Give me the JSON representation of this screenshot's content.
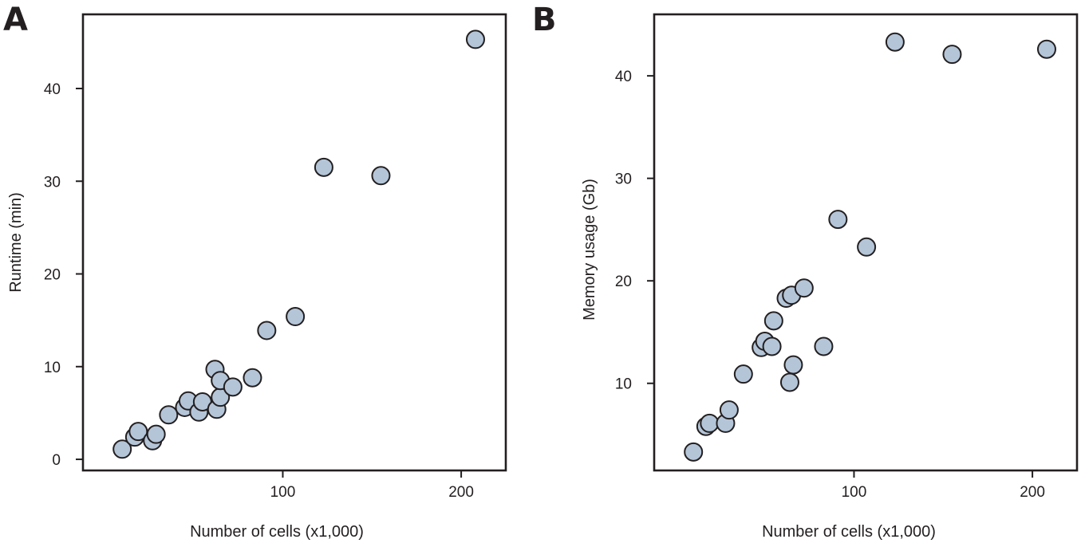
{
  "chart_data": [
    {
      "panel": "A",
      "type": "scatter",
      "title": "",
      "xlabel": "Number of cells (x1,000)",
      "ylabel": "Runtime (min)",
      "xlim": [
        -12,
        225
      ],
      "ylim": [
        -1.2,
        48
      ],
      "xticks": [
        100,
        200
      ],
      "yticks": [
        0,
        10,
        20,
        30,
        40
      ],
      "grid": false,
      "legend": "none",
      "marker_color": "#b4c5d8",
      "edge_color": "#231f20",
      "points": [
        {
          "x": 10,
          "y": 1.1
        },
        {
          "x": 17,
          "y": 2.4
        },
        {
          "x": 19,
          "y": 3.0
        },
        {
          "x": 27,
          "y": 2.0
        },
        {
          "x": 29,
          "y": 2.7
        },
        {
          "x": 36,
          "y": 4.8
        },
        {
          "x": 45,
          "y": 5.6
        },
        {
          "x": 47,
          "y": 6.3
        },
        {
          "x": 53,
          "y": 5.1
        },
        {
          "x": 55,
          "y": 6.2
        },
        {
          "x": 62,
          "y": 9.7
        },
        {
          "x": 63,
          "y": 5.4
        },
        {
          "x": 65,
          "y": 6.7
        },
        {
          "x": 65,
          "y": 8.5
        },
        {
          "x": 72,
          "y": 7.8
        },
        {
          "x": 83,
          "y": 8.8
        },
        {
          "x": 91,
          "y": 13.9
        },
        {
          "x": 107,
          "y": 15.4
        },
        {
          "x": 123,
          "y": 31.5
        },
        {
          "x": 155,
          "y": 30.6
        },
        {
          "x": 208,
          "y": 45.3
        }
      ]
    },
    {
      "panel": "B",
      "type": "scatter",
      "title": "",
      "xlabel": "Number of cells (x1,000)",
      "ylabel": "Memory usage (Gb)",
      "xlim": [
        -12,
        225
      ],
      "ylim": [
        1.5,
        46
      ],
      "xticks": [
        100,
        200
      ],
      "yticks": [
        10,
        20,
        30,
        40
      ],
      "grid": false,
      "legend": "none",
      "marker_color": "#b4c5d8",
      "edge_color": "#231f20",
      "points": [
        {
          "x": 10,
          "y": 3.3
        },
        {
          "x": 17,
          "y": 5.8
        },
        {
          "x": 19,
          "y": 6.1
        },
        {
          "x": 28,
          "y": 6.1
        },
        {
          "x": 30,
          "y": 7.4
        },
        {
          "x": 38,
          "y": 10.9
        },
        {
          "x": 48,
          "y": 13.5
        },
        {
          "x": 50,
          "y": 14.1
        },
        {
          "x": 54,
          "y": 13.6
        },
        {
          "x": 55,
          "y": 16.1
        },
        {
          "x": 62,
          "y": 18.3
        },
        {
          "x": 64,
          "y": 10.1
        },
        {
          "x": 65,
          "y": 18.6
        },
        {
          "x": 66,
          "y": 11.8
        },
        {
          "x": 72,
          "y": 19.3
        },
        {
          "x": 83,
          "y": 13.6
        },
        {
          "x": 91,
          "y": 26.0
        },
        {
          "x": 107,
          "y": 23.3
        },
        {
          "x": 123,
          "y": 43.3
        },
        {
          "x": 155,
          "y": 42.1
        },
        {
          "x": 208,
          "y": 42.6
        }
      ]
    }
  ]
}
